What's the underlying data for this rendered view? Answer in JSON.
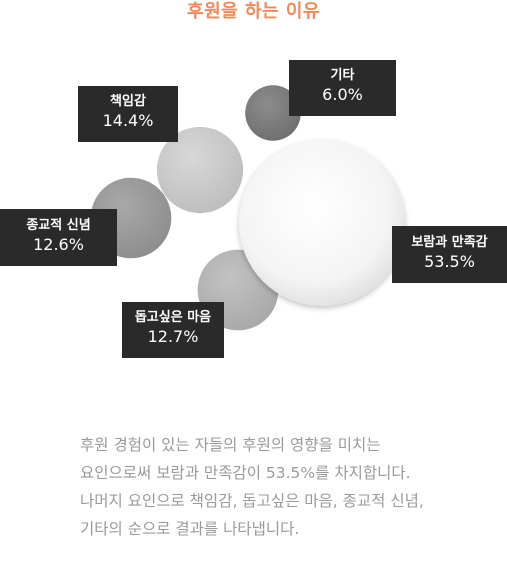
{
  "chart_data": {
    "type": "bubble",
    "title": "후원을 하는 이유",
    "unit": "%",
    "items": [
      {
        "name": "기타",
        "value": 6.0,
        "value_label": "6.0%",
        "color": "#7a7a7a"
      },
      {
        "name": "책임감",
        "value": 14.4,
        "value_label": "14.4%",
        "color": "#c8c8c8"
      },
      {
        "name": "종교적 신념",
        "value": 12.6,
        "value_label": "12.6%",
        "color": "#9a9a9a"
      },
      {
        "name": "돕고싶은 마음",
        "value": 12.7,
        "value_label": "12.7%",
        "color": "#b4b4b4"
      },
      {
        "name": "보람과 만족감",
        "value": 53.5,
        "value_label": "53.5%",
        "color": "#f2f2f2"
      }
    ]
  },
  "description": "후원 경험이 있는 자들의 후원의 영향을 미치는 요인으로써 보람과 만족감이 53.5%를 차지합니다. 나머지 요인으로 책임감, 돕고싶은 마음, 종교적 신념, 기타의 순으로 결과를 나타냅니다.",
  "colors": {
    "title": "#f08a5d",
    "label_bg": "#2a2a2a",
    "label_text": "#ffffff",
    "desc_text": "#9a9a9a"
  }
}
